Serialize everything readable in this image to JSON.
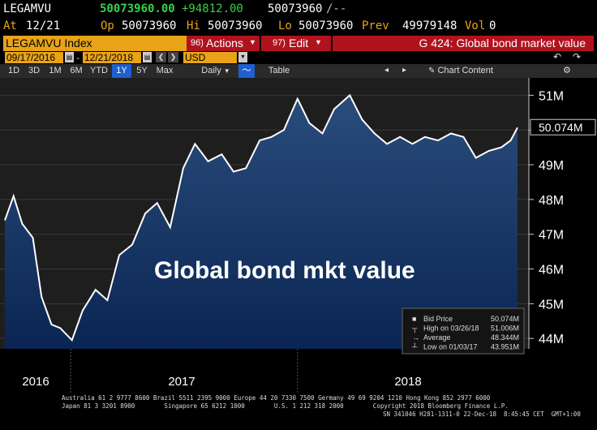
{
  "header": {
    "ticker": "LEGAMVU",
    "last": "50073960.00",
    "change": "+94812.00",
    "last2": "50073960",
    "trend": "/--",
    "at_label": "At",
    "at_date": "12/21",
    "op_label": "Op",
    "op_value": "50073960",
    "hi_label": "Hi",
    "hi_value": "50073960",
    "lo_label": "Lo",
    "lo_value": "50073960",
    "prev_label": "Prev",
    "prev_value": "49979148",
    "vol_label": "Vol",
    "vol_value": "0"
  },
  "titlebar": {
    "security": "LEGAMVU Index",
    "actions_num": "96)",
    "actions": "Actions",
    "edit_num": "97)",
    "edit": "Edit",
    "page_title": "G 424: Global bond market value"
  },
  "range": {
    "start": "09/17/2016",
    "end": "12/21/2018",
    "currency": "USD"
  },
  "toolbar": {
    "periods": [
      "1D",
      "3D",
      "1M",
      "6M",
      "YTD",
      "1Y",
      "5Y",
      "Max"
    ],
    "active_period": "1Y",
    "frequency": "Daily",
    "table": "Table",
    "chart_content": "Chart Content"
  },
  "colors": {
    "orange": "#e8a317",
    "red": "#b0131e",
    "green": "#38d148",
    "blue_active": "#1f5fd0",
    "chart_top": "#222222",
    "chart_bottom": "#0b2b5c"
  },
  "chart_data": {
    "type": "area",
    "annotation": "Global bond mkt value",
    "x_labels": [
      "2016",
      "2017",
      "2018"
    ],
    "y_ticks": [
      "44M",
      "45M",
      "46M",
      "47M",
      "48M",
      "49M",
      "50M",
      "51M"
    ],
    "ylim": [
      43.7,
      51.5
    ],
    "last_label": "50.074M",
    "x": [
      "2016-09-17",
      "2016-10-01",
      "2016-10-15",
      "2016-11-01",
      "2016-11-15",
      "2016-12-01",
      "2016-12-15",
      "2017-01-03",
      "2017-01-20",
      "2017-02-10",
      "2017-03-01",
      "2017-03-20",
      "2017-04-10",
      "2017-05-01",
      "2017-05-20",
      "2017-06-10",
      "2017-07-01",
      "2017-07-20",
      "2017-08-10",
      "2017-09-01",
      "2017-09-20",
      "2017-10-10",
      "2017-11-01",
      "2017-11-20",
      "2017-12-10",
      "2018-01-01",
      "2018-01-20",
      "2018-02-10",
      "2018-03-01",
      "2018-03-26",
      "2018-04-15",
      "2018-05-05",
      "2018-05-25",
      "2018-06-15",
      "2018-07-05",
      "2018-07-25",
      "2018-08-15",
      "2018-09-05",
      "2018-09-25",
      "2018-10-15",
      "2018-11-05",
      "2018-11-25",
      "2018-12-10",
      "2018-12-21"
    ],
    "y": [
      47.4,
      48.1,
      47.3,
      46.9,
      45.2,
      44.4,
      44.3,
      43.95,
      44.8,
      45.4,
      45.1,
      46.4,
      46.7,
      47.6,
      47.9,
      47.2,
      48.9,
      49.6,
      49.1,
      49.3,
      48.8,
      48.9,
      49.7,
      49.8,
      50.0,
      50.9,
      50.2,
      49.9,
      50.6,
      51.0,
      50.3,
      49.9,
      49.6,
      49.8,
      49.6,
      49.8,
      49.7,
      49.9,
      49.8,
      49.2,
      49.4,
      49.5,
      49.7,
      50.07
    ],
    "legend": [
      {
        "label": "Bid Price",
        "value": "50.074M"
      },
      {
        "label": "High on 03/26/18",
        "value": "51.006M"
      },
      {
        "label": "Average",
        "value": "48.344M"
      },
      {
        "label": "Low on 01/03/17",
        "value": "43.951M"
      }
    ]
  },
  "footer": {
    "line1": "Australia 61 2 9777 8600 Brazil 5511 2395 9000 Europe 44 20 7330 7500 Germany 49 69 9204 1210 Hong Kong 852 2977 6000",
    "line2": "Japan 81 3 3201 8900        Singapore 65 6212 1000        U.S. 1 212 318 2000        Copyright 2018 Bloomberg Finance L.P.",
    "line3": "SN 341046 H281-1311-0 22-Dec-18  8:45:45 CET  GMT+1:00"
  }
}
